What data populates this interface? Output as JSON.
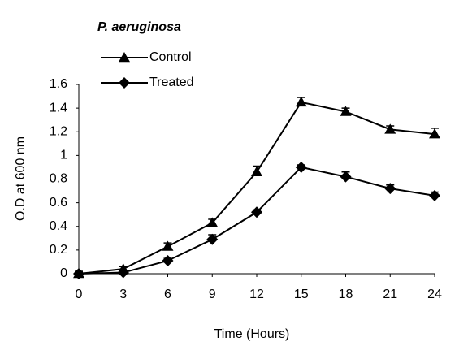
{
  "chart_data": {
    "type": "line",
    "title": "P. aeruginosa",
    "x_label": "Time (Hours)",
    "y_label": "O.D at 600 nm",
    "x": [
      0,
      3,
      6,
      9,
      12,
      15,
      18,
      21,
      24
    ],
    "xlim": [
      0,
      24
    ],
    "xticks": [
      0,
      3,
      6,
      9,
      12,
      15,
      18,
      21,
      24
    ],
    "ylim": [
      0,
      1.6
    ],
    "yticks": [
      0,
      0.2,
      0.4,
      0.6,
      0.8,
      1,
      1.2,
      1.4,
      1.6
    ],
    "legend": "top-left",
    "series": [
      {
        "name": "Control",
        "color": "#000000",
        "marker": "triangle",
        "values": [
          0,
          0.04,
          0.23,
          0.43,
          0.86,
          1.45,
          1.37,
          1.22,
          1.18
        ],
        "errors": [
          0.02,
          0.02,
          0.03,
          0.03,
          0.05,
          0.04,
          0.03,
          0.03,
          0.05
        ]
      },
      {
        "name": "Treated",
        "color": "#000000",
        "marker": "diamond",
        "values": [
          0,
          0.01,
          0.11,
          0.29,
          0.52,
          0.9,
          0.82,
          0.72,
          0.66
        ],
        "errors": [
          0.02,
          0.01,
          0.02,
          0.04,
          0.02,
          0.02,
          0.04,
          0.03,
          0.03
        ]
      }
    ]
  }
}
